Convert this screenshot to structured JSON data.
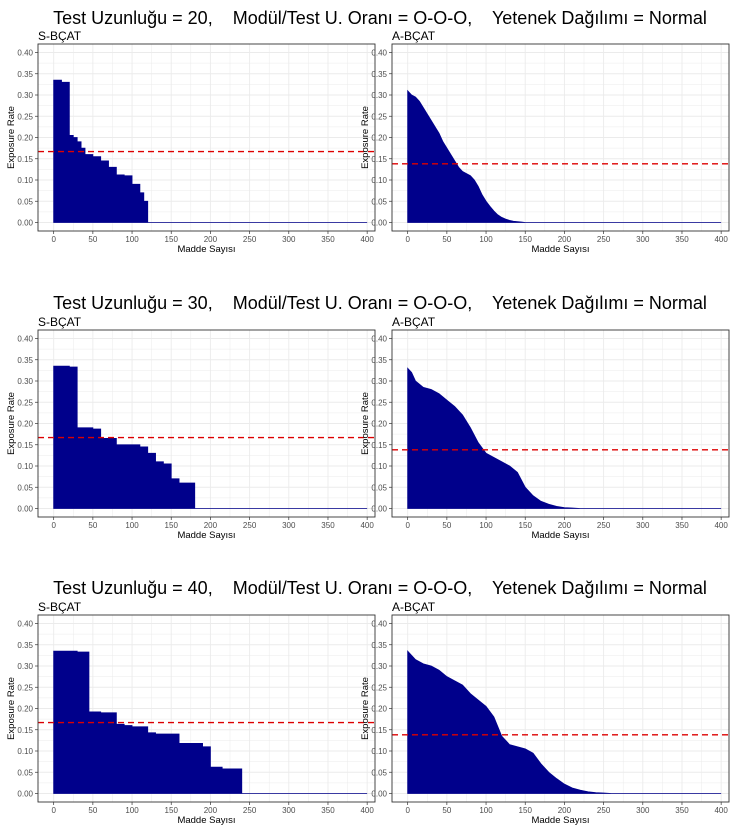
{
  "rows": [
    {
      "title": "Test Uzunluğu = 20,    Modül/Test U. Oranı = O-O-O,    Yetenek Dağılımı = Normal"
    },
    {
      "title": "Test Uzunluğu = 30,    Modül/Test U. Oranı = O-O-O,    Yetenek Dağılımı = Normal"
    },
    {
      "title": "Test Uzunluğu = 40,    Modül/Test U. Oranı = O-O-O,    Yetenek Dağılımı = Normal"
    }
  ],
  "colors": {
    "area": "#00008B",
    "reference_line": "#DD0000",
    "grid": "#EBEBEB",
    "border": "#333333"
  },
  "chart_data": [
    {
      "type": "area",
      "title": "S-BÇAT",
      "xlabel": "Madde Sayısı",
      "ylabel": "Exposure Rate",
      "xlim": [
        -20,
        410
      ],
      "ylim": [
        -0.02,
        0.42
      ],
      "xticks": [
        0,
        50,
        100,
        150,
        200,
        250,
        300,
        350,
        400
      ],
      "yticks": [
        0.0,
        0.05,
        0.1,
        0.15,
        0.2,
        0.25,
        0.3,
        0.35,
        0.4
      ],
      "reference_line": 0.167,
      "series": [
        {
          "x": [
            0,
            10,
            10,
            20,
            20,
            25,
            25,
            30,
            30,
            35,
            35,
            40,
            40,
            50,
            50,
            60,
            60,
            70,
            70,
            80,
            80,
            90,
            90,
            100,
            100,
            110,
            110,
            115,
            115,
            120,
            120,
            400
          ],
          "y": [
            0.335,
            0.335,
            0.33,
            0.33,
            0.205,
            0.205,
            0.2,
            0.2,
            0.19,
            0.19,
            0.175,
            0.175,
            0.16,
            0.16,
            0.155,
            0.155,
            0.145,
            0.145,
            0.13,
            0.13,
            0.112,
            0.112,
            0.11,
            0.11,
            0.09,
            0.09,
            0.07,
            0.07,
            0.05,
            0.05,
            0.0,
            0.0
          ]
        }
      ]
    },
    {
      "type": "area",
      "title": "A-BÇAT",
      "xlabel": "Madde Sayısı",
      "ylabel": "Exposure Rate",
      "xlim": [
        -20,
        410
      ],
      "ylim": [
        -0.02,
        0.42
      ],
      "xticks": [
        0,
        50,
        100,
        150,
        200,
        250,
        300,
        350,
        400
      ],
      "yticks": [
        0.0,
        0.05,
        0.1,
        0.15,
        0.2,
        0.25,
        0.3,
        0.35,
        0.4
      ],
      "reference_line": 0.138,
      "series": [
        {
          "x": [
            0,
            5,
            10,
            15,
            20,
            25,
            30,
            35,
            40,
            45,
            50,
            55,
            60,
            65,
            70,
            75,
            80,
            85,
            90,
            95,
            100,
            105,
            110,
            115,
            120,
            125,
            130,
            135,
            140,
            145,
            150,
            160,
            400
          ],
          "y": [
            0.31,
            0.3,
            0.295,
            0.285,
            0.27,
            0.255,
            0.24,
            0.225,
            0.21,
            0.19,
            0.175,
            0.16,
            0.145,
            0.13,
            0.12,
            0.115,
            0.11,
            0.1,
            0.085,
            0.065,
            0.05,
            0.038,
            0.027,
            0.018,
            0.012,
            0.008,
            0.005,
            0.003,
            0.002,
            0.001,
            0.0,
            0.0,
            0.0
          ]
        }
      ]
    },
    {
      "type": "area",
      "title": "S-BÇAT",
      "xlabel": "Madde Sayısı",
      "ylabel": "Exposure Rate",
      "xlim": [
        -20,
        410
      ],
      "ylim": [
        -0.02,
        0.42
      ],
      "xticks": [
        0,
        50,
        100,
        150,
        200,
        250,
        300,
        350,
        400
      ],
      "yticks": [
        0.0,
        0.05,
        0.1,
        0.15,
        0.2,
        0.25,
        0.3,
        0.35,
        0.4
      ],
      "reference_line": 0.167,
      "series": [
        {
          "x": [
            0,
            20,
            20,
            30,
            30,
            50,
            50,
            60,
            60,
            80,
            80,
            110,
            110,
            120,
            120,
            130,
            130,
            140,
            140,
            150,
            150,
            160,
            160,
            180,
            180,
            400
          ],
          "y": [
            0.335,
            0.335,
            0.333,
            0.333,
            0.19,
            0.19,
            0.187,
            0.187,
            0.165,
            0.165,
            0.15,
            0.15,
            0.145,
            0.145,
            0.13,
            0.13,
            0.11,
            0.11,
            0.105,
            0.105,
            0.07,
            0.07,
            0.06,
            0.06,
            0.0,
            0.0
          ]
        }
      ]
    },
    {
      "type": "area",
      "title": "A-BÇAT",
      "xlabel": "Madde Sayısı",
      "ylabel": "Exposure Rate",
      "xlim": [
        -20,
        410
      ],
      "ylim": [
        -0.02,
        0.42
      ],
      "xticks": [
        0,
        50,
        100,
        150,
        200,
        250,
        300,
        350,
        400
      ],
      "yticks": [
        0.0,
        0.05,
        0.1,
        0.15,
        0.2,
        0.25,
        0.3,
        0.35,
        0.4
      ],
      "reference_line": 0.138,
      "series": [
        {
          "x": [
            0,
            5,
            10,
            20,
            30,
            40,
            50,
            60,
            70,
            80,
            90,
            100,
            110,
            120,
            130,
            140,
            150,
            160,
            170,
            180,
            190,
            200,
            210,
            220,
            400
          ],
          "y": [
            0.33,
            0.32,
            0.3,
            0.285,
            0.28,
            0.27,
            0.255,
            0.24,
            0.22,
            0.19,
            0.155,
            0.13,
            0.12,
            0.11,
            0.1,
            0.085,
            0.05,
            0.03,
            0.017,
            0.01,
            0.005,
            0.002,
            0.001,
            0.0,
            0.0
          ]
        }
      ]
    },
    {
      "type": "area",
      "title": "S-BÇAT",
      "xlabel": "Madde Sayısı",
      "ylabel": "Exposure Rate",
      "xlim": [
        -20,
        410
      ],
      "ylim": [
        -0.02,
        0.42
      ],
      "xticks": [
        0,
        50,
        100,
        150,
        200,
        250,
        300,
        350,
        400
      ],
      "yticks": [
        0.0,
        0.05,
        0.1,
        0.15,
        0.2,
        0.25,
        0.3,
        0.35,
        0.4
      ],
      "reference_line": 0.167,
      "series": [
        {
          "x": [
            0,
            30,
            30,
            45,
            45,
            60,
            60,
            80,
            80,
            90,
            90,
            100,
            100,
            120,
            120,
            130,
            130,
            160,
            160,
            190,
            190,
            200,
            200,
            215,
            215,
            240,
            240,
            400
          ],
          "y": [
            0.335,
            0.335,
            0.333,
            0.333,
            0.192,
            0.192,
            0.19,
            0.19,
            0.163,
            0.163,
            0.16,
            0.16,
            0.157,
            0.157,
            0.143,
            0.143,
            0.14,
            0.14,
            0.118,
            0.118,
            0.11,
            0.11,
            0.062,
            0.062,
            0.058,
            0.058,
            0.0,
            0.0
          ]
        }
      ]
    },
    {
      "type": "area",
      "title": "A-BÇAT",
      "xlabel": "Madde Sayısı",
      "ylabel": "Exposure Rate",
      "xlim": [
        -20,
        410
      ],
      "ylim": [
        -0.02,
        0.42
      ],
      "xticks": [
        0,
        50,
        100,
        150,
        200,
        250,
        300,
        350,
        400
      ],
      "yticks": [
        0.0,
        0.05,
        0.1,
        0.15,
        0.2,
        0.25,
        0.3,
        0.35,
        0.4
      ],
      "reference_line": 0.138,
      "series": [
        {
          "x": [
            0,
            5,
            10,
            20,
            30,
            40,
            50,
            60,
            70,
            80,
            90,
            100,
            110,
            120,
            130,
            140,
            150,
            160,
            170,
            180,
            190,
            200,
            210,
            220,
            230,
            240,
            250,
            260,
            400
          ],
          "y": [
            0.335,
            0.325,
            0.315,
            0.305,
            0.3,
            0.29,
            0.275,
            0.265,
            0.255,
            0.235,
            0.22,
            0.205,
            0.18,
            0.135,
            0.115,
            0.11,
            0.105,
            0.095,
            0.07,
            0.05,
            0.035,
            0.022,
            0.013,
            0.008,
            0.004,
            0.002,
            0.001,
            0.0,
            0.0
          ]
        }
      ]
    }
  ]
}
